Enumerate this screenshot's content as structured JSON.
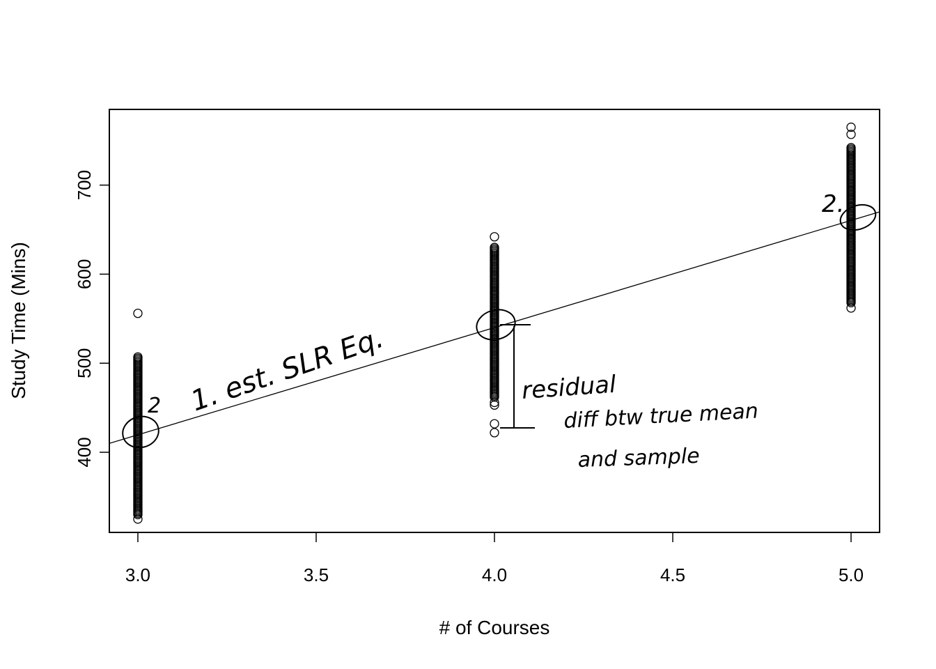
{
  "chart_data": {
    "type": "scatter",
    "title": "",
    "xlabel": "# of Courses",
    "ylabel": "Study Time (Mins)",
    "xlim": [
      2.92,
      5.08
    ],
    "ylim": [
      310,
      785
    ],
    "x_ticks": [
      3.0,
      3.5,
      4.0,
      4.5,
      5.0
    ],
    "x_tick_labels": [
      "3.0",
      "3.5",
      "4.0",
      "4.5",
      "5.0"
    ],
    "y_ticks": [
      400,
      500,
      600,
      700
    ],
    "y_tick_labels": [
      "400",
      "500",
      "600",
      "700"
    ],
    "grid": false,
    "legend": "none",
    "groups": [
      {
        "x": 3.0,
        "dense_range": [
          330,
          507
        ],
        "extra_points": [
          325,
          556
        ]
      },
      {
        "x": 4.0,
        "dense_range": [
          462,
          630
        ],
        "extra_points": [
          422,
          432,
          453,
          456,
          642
        ]
      },
      {
        "x": 5.0,
        "dense_range": [
          568,
          742
        ],
        "extra_points": [
          562,
          757,
          765
        ]
      }
    ],
    "regression_line": {
      "x0": 2.92,
      "y0": 410,
      "x1": 5.08,
      "y1": 670
    },
    "annotations": {
      "eq": "1. est. SLR Eq.",
      "mark_left": "2",
      "mark_right": "2.",
      "residual": "residual",
      "diff": "diff btw true mean",
      "and_sample": "and sample"
    }
  }
}
